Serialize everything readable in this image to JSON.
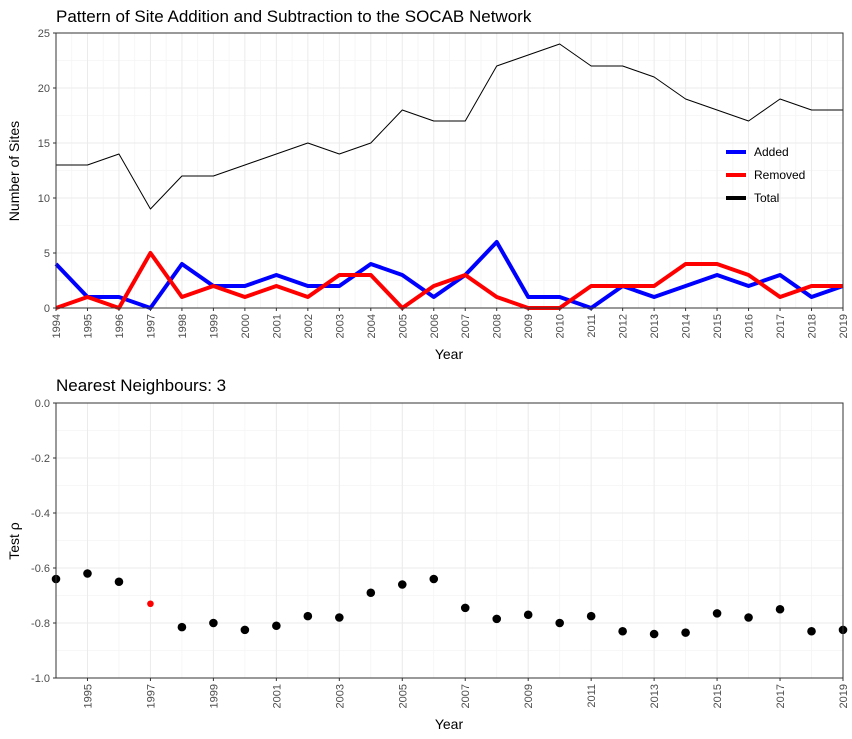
{
  "chart_data": [
    {
      "type": "line",
      "title": "Pattern of Site Addition and Subtraction to the SOCAB Network",
      "xlabel": "Year",
      "ylabel": "Number of Sites",
      "xlim": [
        1994,
        2019
      ],
      "ylim": [
        0,
        25
      ],
      "yticks": [
        0,
        5,
        10,
        15,
        20,
        25
      ],
      "legend_position": "right",
      "x": [
        1994,
        1995,
        1996,
        1997,
        1998,
        1999,
        2000,
        2001,
        2002,
        2003,
        2004,
        2005,
        2006,
        2007,
        2008,
        2009,
        2010,
        2011,
        2012,
        2013,
        2014,
        2015,
        2016,
        2017,
        2018,
        2019
      ],
      "series": [
        {
          "name": "Added",
          "color": "#0000ff",
          "values": [
            4,
            1,
            1,
            0,
            4,
            2,
            2,
            3,
            2,
            2,
            4,
            3,
            1,
            3,
            6,
            1,
            1,
            0,
            2,
            1,
            2,
            3,
            2,
            3,
            1,
            2
          ]
        },
        {
          "name": "Removed",
          "color": "#ff0000",
          "values": [
            0,
            1,
            0,
            5,
            1,
            2,
            1,
            2,
            1,
            3,
            3,
            0,
            2,
            3,
            1,
            0,
            0,
            2,
            2,
            2,
            4,
            4,
            3,
            1,
            2,
            2
          ]
        },
        {
          "name": "Total",
          "color": "#000000",
          "values": [
            13,
            13,
            14,
            9,
            12,
            12,
            13,
            14,
            15,
            14,
            15,
            18,
            17,
            17,
            22,
            23,
            24,
            22,
            22,
            21,
            19,
            18,
            17,
            19,
            18,
            18
          ]
        }
      ]
    },
    {
      "type": "scatter",
      "title": "Nearest Neighbours: 3",
      "xlabel": "Year",
      "ylabel": "Test ρ",
      "xlim": [
        1994,
        2019
      ],
      "ylim": [
        -1.0,
        0.0
      ],
      "yticks": [
        0.0,
        -0.2,
        -0.4,
        -0.6,
        -0.8,
        -1.0
      ],
      "ytick_labels": [
        "0.0",
        "-0.2",
        "-0.4",
        "-0.6",
        "-0.8",
        "-1.0"
      ],
      "xticks": [
        1995,
        1997,
        1999,
        2001,
        2003,
        2005,
        2007,
        2009,
        2011,
        2013,
        2015,
        2017,
        2019
      ],
      "default_color": "#000000",
      "highlight_color": "#ff0000",
      "points": [
        {
          "x": 1994,
          "y": -0.64
        },
        {
          "x": 1995,
          "y": -0.62
        },
        {
          "x": 1996,
          "y": -0.65
        },
        {
          "x": 1997,
          "y": -0.73,
          "highlight": true
        },
        {
          "x": 1998,
          "y": -0.815
        },
        {
          "x": 1999,
          "y": -0.8
        },
        {
          "x": 2000,
          "y": -0.825
        },
        {
          "x": 2001,
          "y": -0.81
        },
        {
          "x": 2002,
          "y": -0.775
        },
        {
          "x": 2003,
          "y": -0.78
        },
        {
          "x": 2004,
          "y": -0.69
        },
        {
          "x": 2005,
          "y": -0.66
        },
        {
          "x": 2006,
          "y": -0.64
        },
        {
          "x": 2007,
          "y": -0.745
        },
        {
          "x": 2008,
          "y": -0.785
        },
        {
          "x": 2009,
          "y": -0.77
        },
        {
          "x": 2010,
          "y": -0.8
        },
        {
          "x": 2011,
          "y": -0.775
        },
        {
          "x": 2012,
          "y": -0.83
        },
        {
          "x": 2013,
          "y": -0.84
        },
        {
          "x": 2014,
          "y": -0.835
        },
        {
          "x": 2015,
          "y": -0.765
        },
        {
          "x": 2016,
          "y": -0.78
        },
        {
          "x": 2017,
          "y": -0.75
        },
        {
          "x": 2018,
          "y": -0.83
        },
        {
          "x": 2019,
          "y": -0.825
        }
      ]
    }
  ]
}
